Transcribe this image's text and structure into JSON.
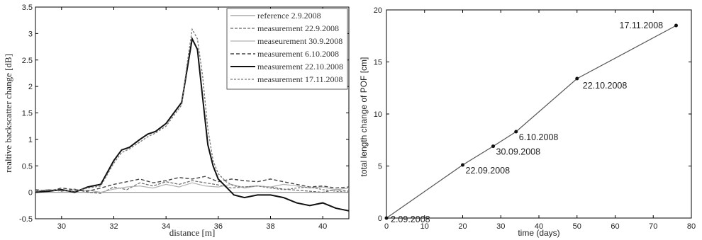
{
  "chart_data": [
    {
      "type": "line",
      "xlabel": "distance [m]",
      "ylabel": "realtive backscatter change [dB]",
      "xlim": [
        29,
        41
      ],
      "ylim": [
        -0.5,
        3.5
      ],
      "xticks": [
        30,
        32,
        34,
        36,
        38,
        40
      ],
      "yticks": [
        -0.5,
        0,
        0.5,
        1,
        1.5,
        2,
        2.5,
        3,
        3.5
      ],
      "legend_position": "top-right",
      "series": [
        {
          "name": "reference 2.9.2008",
          "color": "#999999",
          "dash": "",
          "width": 1.2,
          "x": [
            29,
            41
          ],
          "y": [
            0,
            0
          ]
        },
        {
          "name": "measurement 22.9.2008",
          "color": "#666666",
          "dash": "4,2",
          "width": 1.2,
          "x": [
            29,
            29.5,
            30,
            30.5,
            31,
            31.5,
            32,
            32.5,
            33,
            33.5,
            34,
            34.5,
            35,
            35.5,
            36,
            36.5,
            37,
            37.5,
            38,
            38.5,
            39,
            39.5,
            40,
            40.5,
            41
          ],
          "y": [
            0.02,
            0.05,
            0.02,
            0.06,
            0.0,
            -0.02,
            0.1,
            0.05,
            0.18,
            0.12,
            0.2,
            0.15,
            0.22,
            0.18,
            0.14,
            0.08,
            0.1,
            0.12,
            0.1,
            0.06,
            0.04,
            0.02,
            0.0,
            0.05,
            0.02
          ]
        },
        {
          "name": "measeurement 30.9.2008",
          "color": "#b0b0b0",
          "dash": "",
          "width": 1.2,
          "x": [
            29,
            29.5,
            30,
            30.5,
            31,
            31.5,
            32,
            32.5,
            33,
            33.5,
            34,
            34.5,
            35,
            35.5,
            36,
            36.5,
            37,
            37.5,
            38,
            38.5,
            39,
            39.5,
            40,
            40.5,
            41
          ],
          "y": [
            0.0,
            0.03,
            0.05,
            0.02,
            0.04,
            0.0,
            0.06,
            0.1,
            0.12,
            0.08,
            0.15,
            0.1,
            0.18,
            0.12,
            0.1,
            0.15,
            0.08,
            0.12,
            0.1,
            0.15,
            0.12,
            0.08,
            0.1,
            0.05,
            0.08
          ]
        },
        {
          "name": "measurement 6.10.2008",
          "color": "#444444",
          "dash": "5,3",
          "width": 1.4,
          "x": [
            29,
            29.5,
            30,
            30.5,
            31,
            31.5,
            32,
            32.5,
            33,
            33.5,
            34,
            34.5,
            35,
            35.5,
            36,
            36.5,
            37,
            37.5,
            38,
            38.5,
            39,
            39.5,
            40,
            40.5,
            41
          ],
          "y": [
            0.05,
            0.02,
            0.08,
            0.05,
            0.02,
            0.08,
            0.15,
            0.2,
            0.25,
            0.18,
            0.22,
            0.28,
            0.25,
            0.3,
            0.2,
            0.25,
            0.22,
            0.2,
            0.25,
            0.2,
            0.15,
            0.1,
            0.12,
            0.08,
            0.1
          ]
        },
        {
          "name": "measurement 22.10.2008",
          "color": "#111111",
          "dash": "",
          "width": 2.0,
          "x": [
            29,
            29.5,
            30,
            30.5,
            31,
            31.5,
            32,
            32.3,
            32.6,
            33,
            33.3,
            33.6,
            34,
            34.3,
            34.6,
            34.8,
            35,
            35.2,
            35.4,
            35.6,
            35.8,
            36,
            36.3,
            36.6,
            37,
            37.5,
            38,
            38.5,
            39,
            39.5,
            40,
            40.5,
            41
          ],
          "y": [
            0.0,
            0.02,
            0.05,
            0.0,
            0.1,
            0.15,
            0.6,
            0.8,
            0.85,
            1.0,
            1.1,
            1.15,
            1.3,
            1.5,
            1.7,
            2.3,
            2.9,
            2.7,
            1.8,
            0.9,
            0.5,
            0.25,
            0.1,
            -0.05,
            -0.1,
            -0.05,
            -0.05,
            -0.1,
            -0.2,
            -0.25,
            -0.2,
            -0.3,
            -0.35
          ]
        },
        {
          "name": "measurement 17.11.2008",
          "color": "#777777",
          "dash": "3,2",
          "width": 1.3,
          "x": [
            29,
            29.5,
            30,
            30.5,
            31,
            31.5,
            32,
            32.3,
            32.6,
            33,
            33.3,
            33.6,
            34,
            34.3,
            34.6,
            34.8,
            35,
            35.2,
            35.4,
            35.6,
            35.8,
            36,
            36.3,
            36.6,
            37,
            37.5,
            38,
            38.5,
            39,
            39.5,
            40,
            40.5,
            41
          ],
          "y": [
            0.02,
            0.05,
            0.03,
            0.02,
            0.08,
            0.12,
            0.55,
            0.75,
            0.82,
            0.95,
            1.05,
            1.12,
            1.25,
            1.45,
            1.65,
            2.4,
            3.08,
            2.9,
            2.2,
            1.2,
            0.6,
            0.35,
            0.2,
            0.12,
            0.1,
            0.12,
            0.08,
            0.05,
            0.08,
            0.1,
            0.05,
            0.02,
            0.0
          ]
        }
      ]
    },
    {
      "type": "line",
      "xlabel": "time (days)",
      "ylabel": "total length change of POF [cm]",
      "xlim": [
        0,
        80
      ],
      "ylim": [
        0,
        20
      ],
      "xticks": [
        0,
        10,
        20,
        30,
        40,
        50,
        60,
        70,
        80
      ],
      "yticks": [
        0,
        5,
        10,
        15,
        20
      ],
      "series": [
        {
          "x": [
            0,
            20,
            28,
            34,
            50,
            76
          ],
          "y": [
            0,
            5.1,
            6.9,
            8.3,
            13.4,
            18.5
          ],
          "labels": [
            "2.09.2008",
            "22.09.2008",
            "30.09.2008",
            "6.10.2008",
            "22.10.2008",
            "17.11.2008"
          ]
        }
      ]
    }
  ]
}
